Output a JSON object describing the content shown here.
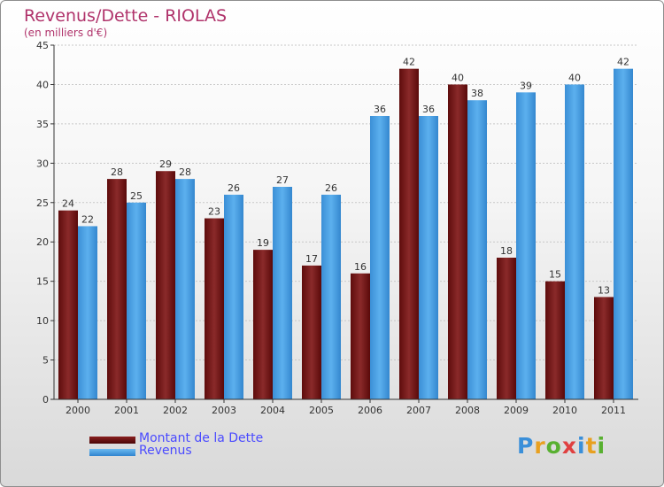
{
  "header": {
    "title": "Revenus/Dette - RIOLAS",
    "subtitle": "(en milliers d'€)"
  },
  "chart_data": {
    "type": "bar",
    "categories": [
      "2000",
      "2001",
      "2002",
      "2003",
      "2004",
      "2005",
      "2006",
      "2007",
      "2008",
      "2009",
      "2010",
      "2011"
    ],
    "series": [
      {
        "name": "Montant de la Dette",
        "values": [
          24,
          28,
          29,
          23,
          19,
          17,
          16,
          42,
          40,
          18,
          15,
          13
        ],
        "color": "#7a1a1a"
      },
      {
        "name": "Revenus",
        "values": [
          22,
          25,
          28,
          26,
          27,
          26,
          36,
          36,
          38,
          39,
          40,
          42
        ],
        "color": "#4ea3e3"
      }
    ],
    "ylim": [
      0,
      45
    ],
    "yticks": [
      0,
      5,
      10,
      15,
      20,
      25,
      30,
      35,
      40,
      45
    ],
    "grid": true,
    "legend_position": "bottom-left"
  },
  "brand": {
    "logo_letters": [
      "P",
      "r",
      "o",
      "x",
      "i",
      "t",
      "i"
    ],
    "logo_colors": [
      "#3a8fd9",
      "#e8a020",
      "#58b030",
      "#e04040",
      "#3a8fd9",
      "#e8a020",
      "#58b030"
    ]
  }
}
